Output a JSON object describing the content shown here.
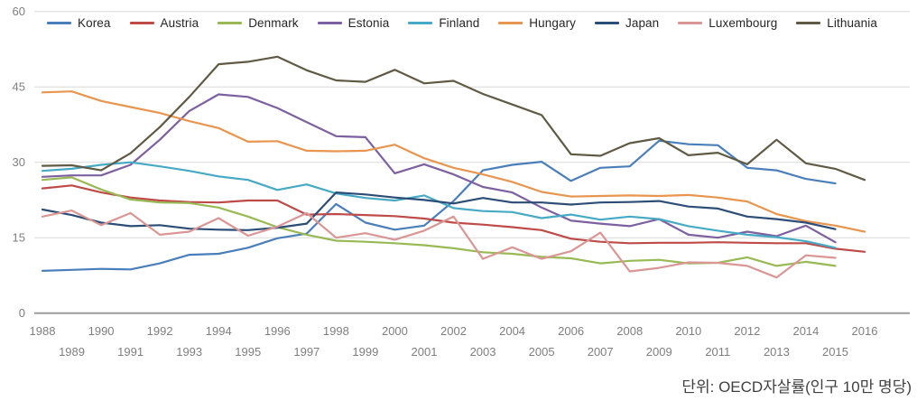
{
  "caption": "단위: OECD자살률(인구 10만 명당)",
  "axis": {
    "y_ticks": [
      "0",
      "15",
      "30",
      "45",
      "60"
    ],
    "x_first_year": "1988",
    "x_last_year": "2016"
  },
  "colors": {
    "grid": "#d9d9d9",
    "axis_line": "#9b9b9b",
    "tick_label": "#7f7f7f",
    "legend_text": "#262626",
    "caption_text": "#404040"
  },
  "chart_data": {
    "type": "line",
    "title": "",
    "xlabel": "",
    "ylabel": "",
    "unit_note": "단위: OECD자살률(인구 10만 명당)",
    "x": [
      1988,
      1989,
      1990,
      1991,
      1992,
      1993,
      1994,
      1995,
      1996,
      1997,
      1998,
      1999,
      2000,
      2001,
      2002,
      2003,
      2004,
      2005,
      2006,
      2007,
      2008,
      2009,
      2010,
      2011,
      2012,
      2013,
      2014,
      2015,
      2016
    ],
    "ylim": [
      0,
      60
    ],
    "yticks": [
      0,
      15,
      30,
      45,
      60
    ],
    "grid": true,
    "legend_position": "top",
    "series": [
      {
        "name": "Korea",
        "color": "#4A7EBB",
        "values": [
          8.4,
          8.6,
          8.8,
          8.7,
          9.9,
          11.6,
          11.8,
          13.0,
          14.9,
          15.8,
          21.7,
          18.0,
          16.6,
          17.4,
          22.3,
          28.4,
          29.5,
          30.1,
          26.3,
          28.9,
          29.2,
          34.3,
          33.6,
          33.4,
          28.9,
          28.4,
          26.7,
          25.8,
          null
        ]
      },
      {
        "name": "Austria",
        "color": "#BE4B48",
        "values": [
          24.8,
          25.4,
          24.0,
          23.0,
          22.4,
          22.1,
          22.0,
          22.4,
          22.4,
          19.6,
          19.7,
          19.5,
          19.3,
          18.8,
          18.0,
          17.6,
          17.1,
          16.5,
          14.8,
          14.2,
          13.9,
          14.0,
          14.0,
          14.1,
          14.0,
          13.9,
          13.9,
          12.8,
          12.2
        ]
      },
      {
        "name": "Denmark",
        "color": "#98B954",
        "values": [
          26.5,
          27.0,
          24.6,
          22.6,
          22.0,
          21.9,
          21.0,
          19.2,
          17.1,
          15.6,
          14.4,
          14.2,
          13.9,
          13.5,
          12.9,
          12.1,
          11.8,
          11.2,
          10.9,
          9.9,
          10.4,
          10.6,
          9.9,
          10.0,
          11.1,
          9.4,
          10.2,
          9.4,
          null
        ]
      },
      {
        "name": "Estonia",
        "color": "#7D60A0",
        "values": [
          27.1,
          27.4,
          27.4,
          29.5,
          34.5,
          40.2,
          43.5,
          43.0,
          40.8,
          38.0,
          35.2,
          35.0,
          27.8,
          29.6,
          27.6,
          25.1,
          24.0,
          21.0,
          18.4,
          17.8,
          17.3,
          18.7,
          15.6,
          15.0,
          16.2,
          15.3,
          17.4,
          14.1,
          null
        ]
      },
      {
        "name": "Finland",
        "color": "#46AAC5",
        "values": [
          28.3,
          28.7,
          29.5,
          30.0,
          29.2,
          28.3,
          27.2,
          26.5,
          24.5,
          25.6,
          23.8,
          22.9,
          22.4,
          23.4,
          20.9,
          20.3,
          20.1,
          18.9,
          19.6,
          18.6,
          19.2,
          18.7,
          17.3,
          16.4,
          15.6,
          15.1,
          14.3,
          13.0,
          null
        ]
      },
      {
        "name": "Hungary",
        "color": "#E8954F",
        "values": [
          43.9,
          44.1,
          42.2,
          41.0,
          39.8,
          38.2,
          36.8,
          34.1,
          34.2,
          32.3,
          32.2,
          32.3,
          33.5,
          30.8,
          28.9,
          27.6,
          26.1,
          24.1,
          23.2,
          23.3,
          23.4,
          23.3,
          23.5,
          23.0,
          22.2,
          19.7,
          18.3,
          17.4,
          16.2
        ]
      },
      {
        "name": "Japan",
        "color": "#2C4D75",
        "values": [
          20.6,
          19.5,
          18.0,
          17.3,
          17.5,
          16.8,
          16.6,
          16.5,
          17.0,
          17.8,
          24.0,
          23.6,
          23.0,
          22.5,
          21.8,
          22.9,
          22.0,
          22.0,
          21.6,
          22.0,
          22.1,
          22.3,
          21.2,
          20.8,
          19.2,
          18.7,
          18.0,
          16.7,
          null
        ]
      },
      {
        "name": "Luxembourg",
        "color": "#D99694",
        "values": [
          19.2,
          20.4,
          17.5,
          19.9,
          15.6,
          16.2,
          18.9,
          15.4,
          17.2,
          19.9,
          15.0,
          15.9,
          14.6,
          16.4,
          19.2,
          10.8,
          13.1,
          10.8,
          12.3,
          16.0,
          8.3,
          9.0,
          10.1,
          10.0,
          9.4,
          7.1,
          11.5,
          11.0,
          null
        ]
      },
      {
        "name": "Lithuania",
        "color": "#605A44",
        "values": [
          29.3,
          29.4,
          28.4,
          31.8,
          37.0,
          43.0,
          49.5,
          50.0,
          51.0,
          48.3,
          46.3,
          46.0,
          48.4,
          45.7,
          46.2,
          43.6,
          41.5,
          39.4,
          31.6,
          31.3,
          33.8,
          34.8,
          31.4,
          31.9,
          29.6,
          34.5,
          29.8,
          28.7,
          26.5
        ]
      }
    ]
  }
}
